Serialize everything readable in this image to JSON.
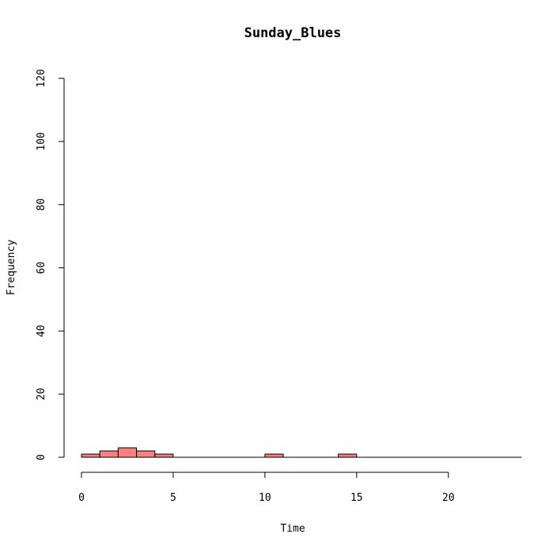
{
  "chart_data": {
    "type": "bar",
    "title": "Sunday_Blues",
    "xlabel": "Time",
    "ylabel": "Frequency",
    "xlim": [
      0,
      24
    ],
    "ylim": [
      0,
      120
    ],
    "x_ticks": [
      0,
      5,
      10,
      15,
      20
    ],
    "y_ticks": [
      0,
      20,
      40,
      60,
      80,
      100,
      120
    ],
    "bin_width": 1,
    "bins": [
      {
        "start": 0,
        "end": 1,
        "count": 1
      },
      {
        "start": 1,
        "end": 2,
        "count": 2
      },
      {
        "start": 2,
        "end": 3,
        "count": 3
      },
      {
        "start": 3,
        "end": 4,
        "count": 2
      },
      {
        "start": 4,
        "end": 5,
        "count": 1
      },
      {
        "start": 5,
        "end": 6,
        "count": 0
      },
      {
        "start": 6,
        "end": 7,
        "count": 0
      },
      {
        "start": 7,
        "end": 8,
        "count": 0
      },
      {
        "start": 8,
        "end": 9,
        "count": 0
      },
      {
        "start": 9,
        "end": 10,
        "count": 0
      },
      {
        "start": 10,
        "end": 11,
        "count": 1
      },
      {
        "start": 11,
        "end": 12,
        "count": 0
      },
      {
        "start": 12,
        "end": 13,
        "count": 0
      },
      {
        "start": 13,
        "end": 14,
        "count": 0
      },
      {
        "start": 14,
        "end": 15,
        "count": 1
      },
      {
        "start": 15,
        "end": 16,
        "count": 0
      },
      {
        "start": 16,
        "end": 17,
        "count": 0
      },
      {
        "start": 17,
        "end": 18,
        "count": 0
      },
      {
        "start": 18,
        "end": 19,
        "count": 0
      },
      {
        "start": 19,
        "end": 20,
        "count": 0
      },
      {
        "start": 20,
        "end": 21,
        "count": 0
      },
      {
        "start": 21,
        "end": 22,
        "count": 0
      },
      {
        "start": 22,
        "end": 23,
        "count": 0
      },
      {
        "start": 23,
        "end": 24,
        "count": 0
      }
    ],
    "bar_color": "#f88080",
    "grid": false,
    "legend": "none"
  }
}
